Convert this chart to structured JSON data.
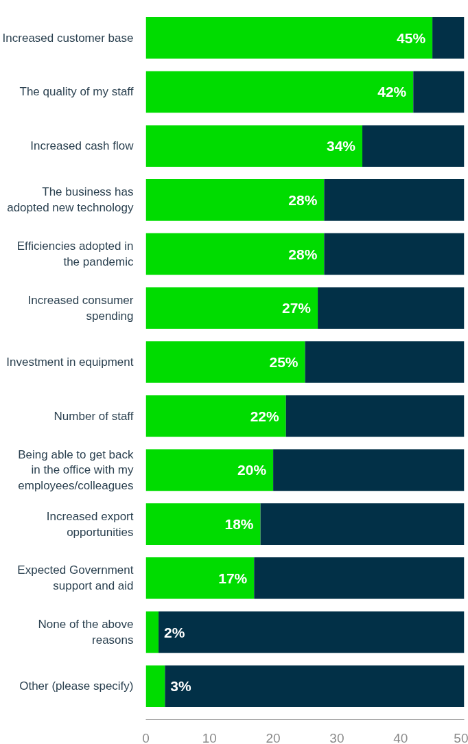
{
  "chart_data": {
    "type": "bar",
    "orientation": "horizontal",
    "stacked": true,
    "categories": [
      "Increased customer base",
      "The quality of my staff",
      "Increased cash flow",
      "The business has adopted new technology",
      "Efficiencies adopted in the pandemic",
      "Increased consumer spending",
      "Investment in equipment",
      "Number of staff",
      "Being able to get back in the office with my employees/colleagues",
      "Increased export opportunities",
      "Expected Government support and aid",
      "None of the above reasons",
      "Other (please specify)"
    ],
    "series": [
      {
        "color": "#00dc00",
        "values": [
          45,
          42,
          34,
          28,
          28,
          27,
          25,
          22,
          20,
          18,
          17,
          2,
          3
        ],
        "value_labels": [
          "45%",
          "42%",
          "34%",
          "28%",
          "28%",
          "27%",
          "25%",
          "22%",
          "20%",
          "18%",
          "17%",
          "2%",
          "3%"
        ]
      },
      {
        "color": "#023047",
        "values": [
          5,
          8,
          16,
          22,
          22,
          23,
          25,
          28,
          30,
          32,
          33,
          48,
          47
        ]
      }
    ],
    "xlim": [
      0,
      50
    ],
    "xticks": [
      0,
      10,
      20,
      30,
      40,
      50
    ],
    "grid": false
  }
}
